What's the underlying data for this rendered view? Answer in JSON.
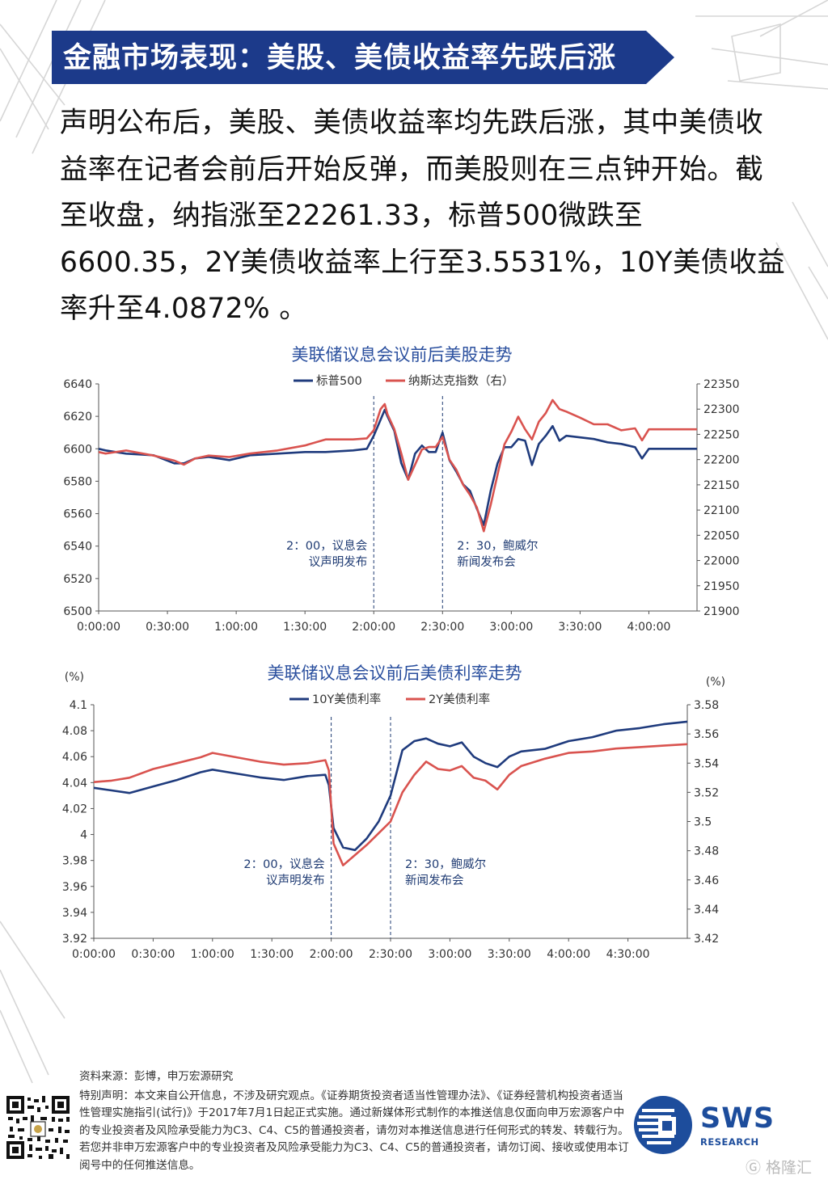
{
  "banner": {
    "title": "金融市场表现：美股、美债收益率先跌后涨"
  },
  "intro": {
    "text": "声明公布后，美股、美债收益率均先跌后涨，其中美债收益率在记者会前后开始反弹，而美股则在三点钟开始。截至收盘，纳指涨至22261.33，标普500微跌至6600.35，2Y美债收益率上行至3.5531%，10Y美债收益率升至4.0872% 。"
  },
  "chart_data": [
    {
      "type": "line",
      "title": "美联储议息会议前后美股走势",
      "x_ticks": [
        "0:00:00",
        "0:30:00",
        "1:00:00",
        "1:30:00",
        "2:00:00",
        "2:30:00",
        "3:00:00",
        "3:30:00",
        "4:00:00"
      ],
      "x_range_hours": [
        0,
        4.35
      ],
      "y_left": {
        "ylim": [
          6500,
          6640
        ],
        "ticks": [
          "6500",
          "6520",
          "6540",
          "6560",
          "6580",
          "6600",
          "6620",
          "6640"
        ]
      },
      "y_right": {
        "ylim": [
          21900,
          22350
        ],
        "ticks": [
          "21900",
          "21950",
          "22000",
          "22050",
          "22100",
          "22150",
          "22200",
          "22250",
          "22300",
          "22350"
        ]
      },
      "series": [
        {
          "name": "标普500",
          "axis": "left",
          "color": "#1f3b7d",
          "x": [
            0,
            0.05,
            0.2,
            0.4,
            0.55,
            0.62,
            0.7,
            0.8,
            0.95,
            1.1,
            1.3,
            1.5,
            1.65,
            1.85,
            1.95,
            2.0,
            2.05,
            2.08,
            2.1,
            2.15,
            2.2,
            2.25,
            2.3,
            2.35,
            2.4,
            2.45,
            2.5,
            2.55,
            2.6,
            2.65,
            2.7,
            2.75,
            2.8,
            2.85,
            2.9,
            2.95,
            3.0,
            3.05,
            3.1,
            3.15,
            3.2,
            3.25,
            3.3,
            3.35,
            3.4,
            3.5,
            3.6,
            3.7,
            3.8,
            3.9,
            3.95,
            4.0,
            4.35
          ],
          "y": [
            6600,
            6599,
            6597,
            6596,
            6591,
            6591,
            6594,
            6595,
            6593,
            6596,
            6597,
            6598,
            6598,
            6599,
            6600,
            6608,
            6618,
            6624,
            6620,
            6611,
            6591,
            6581,
            6597,
            6602,
            6598,
            6598,
            6610,
            6593,
            6586,
            6578,
            6574,
            6563,
            6553,
            6574,
            6591,
            6601,
            6601,
            6606,
            6605,
            6590,
            6603,
            6608,
            6614,
            6605,
            6608,
            6607,
            6606,
            6604,
            6603,
            6601,
            6594,
            6600,
            6600
          ]
        },
        {
          "name": "纳斯达克指数（右）",
          "axis": "right",
          "color": "#d9534f",
          "x": [
            0,
            0.05,
            0.2,
            0.4,
            0.55,
            0.62,
            0.7,
            0.8,
            0.95,
            1.1,
            1.3,
            1.5,
            1.65,
            1.85,
            1.95,
            2.0,
            2.05,
            2.08,
            2.1,
            2.15,
            2.2,
            2.25,
            2.3,
            2.35,
            2.4,
            2.45,
            2.5,
            2.55,
            2.6,
            2.65,
            2.7,
            2.75,
            2.8,
            2.85,
            2.9,
            2.95,
            3.0,
            3.05,
            3.1,
            3.15,
            3.2,
            3.25,
            3.3,
            3.35,
            3.4,
            3.5,
            3.6,
            3.7,
            3.8,
            3.9,
            3.95,
            4.0,
            4.35
          ],
          "y": [
            22215,
            22212,
            22218,
            22208,
            22198,
            22190,
            22202,
            22208,
            22205,
            22212,
            22218,
            22228,
            22240,
            22240,
            22242,
            22258,
            22300,
            22310,
            22290,
            22260,
            22212,
            22160,
            22190,
            22220,
            22225,
            22225,
            22245,
            22200,
            22180,
            22150,
            22130,
            22105,
            22058,
            22110,
            22170,
            22230,
            22255,
            22285,
            22260,
            22240,
            22275,
            22292,
            22318,
            22300,
            22295,
            22283,
            22270,
            22270,
            22258,
            22262,
            22238,
            22260,
            22260
          ]
        }
      ],
      "annotations": [
        {
          "x_hours": 2.0,
          "lines": [
            "2：00，议息会",
            "议声明发布"
          ]
        },
        {
          "x_hours": 2.5,
          "lines": [
            "2：30，鲍威尔",
            "新闻发布会"
          ]
        }
      ],
      "legend": "top-center"
    },
    {
      "type": "line",
      "title": "美联储议息会议前后美债利率走势",
      "units": {
        "left": "(%)",
        "right": "(%)"
      },
      "x_ticks": [
        "0:00:00",
        "0:30:00",
        "1:00:00",
        "1:30:00",
        "2:00:00",
        "2:30:00",
        "3:00:00",
        "3:30:00",
        "4:00:00",
        "4:30:00"
      ],
      "x_range_hours": [
        0,
        5.0
      ],
      "y_left": {
        "ylim": [
          3.92,
          4.1
        ],
        "ticks": [
          "3.92",
          "3.94",
          "3.96",
          "3.98",
          "4",
          "4.02",
          "4.04",
          "4.06",
          "4.08",
          "4.1"
        ]
      },
      "y_right": {
        "ylim": [
          3.42,
          3.58
        ],
        "ticks": [
          "3.42",
          "3.44",
          "3.46",
          "3.48",
          "3.5",
          "3.52",
          "3.54",
          "3.56",
          "3.58"
        ]
      },
      "series": [
        {
          "name": "10Y美债利率",
          "axis": "left",
          "color": "#1f3b7d",
          "x": [
            0,
            0.15,
            0.3,
            0.5,
            0.7,
            0.9,
            1.0,
            1.2,
            1.4,
            1.6,
            1.8,
            1.95,
            1.98,
            2.02,
            2.1,
            2.2,
            2.3,
            2.4,
            2.5,
            2.6,
            2.7,
            2.8,
            2.9,
            3.0,
            3.1,
            3.2,
            3.3,
            3.4,
            3.5,
            3.6,
            3.8,
            4.0,
            4.2,
            4.4,
            4.6,
            4.8,
            5.0
          ],
          "y": [
            4.036,
            4.034,
            4.032,
            4.037,
            4.042,
            4.048,
            4.05,
            4.047,
            4.044,
            4.042,
            4.045,
            4.046,
            4.038,
            4.005,
            3.99,
            3.988,
            3.997,
            4.01,
            4.03,
            4.065,
            4.072,
            4.074,
            4.07,
            4.068,
            4.071,
            4.06,
            4.055,
            4.052,
            4.06,
            4.064,
            4.066,
            4.072,
            4.075,
            4.08,
            4.082,
            4.085,
            4.087
          ]
        },
        {
          "name": "2Y美债利率",
          "axis": "right",
          "color": "#d9534f",
          "x": [
            0,
            0.15,
            0.3,
            0.5,
            0.7,
            0.9,
            1.0,
            1.2,
            1.4,
            1.6,
            1.8,
            1.95,
            1.98,
            2.02,
            2.1,
            2.2,
            2.3,
            2.4,
            2.5,
            2.6,
            2.7,
            2.8,
            2.9,
            3.0,
            3.1,
            3.2,
            3.3,
            3.4,
            3.5,
            3.6,
            3.8,
            4.0,
            4.2,
            4.4,
            4.6,
            4.8,
            5.0
          ],
          "y": [
            3.527,
            3.528,
            3.53,
            3.536,
            3.54,
            3.544,
            3.547,
            3.544,
            3.541,
            3.539,
            3.54,
            3.542,
            3.535,
            3.485,
            3.47,
            3.477,
            3.484,
            3.492,
            3.5,
            3.52,
            3.532,
            3.541,
            3.536,
            3.535,
            3.538,
            3.53,
            3.528,
            3.522,
            3.532,
            3.538,
            3.543,
            3.547,
            3.548,
            3.55,
            3.551,
            3.552,
            3.553
          ]
        }
      ],
      "annotations": [
        {
          "x_hours": 2.0,
          "lines": [
            "2：00，议息会",
            "议声明发布"
          ]
        },
        {
          "x_hours": 2.5,
          "lines": [
            "2：30，鲍威尔",
            "新闻发布会"
          ]
        }
      ],
      "legend": "top-center"
    }
  ],
  "footer": {
    "source": "资料来源：彭博，申万宏源研究",
    "disclaimer": "特别声明：本文来自公开信息，不涉及研究观点。《证券期货投资者适当性管理办法》、《证券经营机构投资者适当性管理实施指引(试行)》于2017年7月1日起正式实施。通过新媒体形式制作的本推送信息仅面向申万宏源客户中的专业投资者及风险承受能力为C3、C4、C5的普通投资者，请勿对本推送信息进行任何形式的转发、转载行为。若您并非申万宏源客户中的专业投资者及风险承受能力为C3、C4、C5的普通投资者，请勿订阅、接收或使用本订阅号中的任何推送信息。"
  },
  "logo": {
    "name": "SWS",
    "sub": "RESEARCH"
  },
  "watermark": "格隆汇",
  "colors": {
    "banner": "#1c3a8a",
    "navy_series": "#1f3b7d",
    "red_series": "#d9534f",
    "title_blue": "#2a4f9e"
  }
}
